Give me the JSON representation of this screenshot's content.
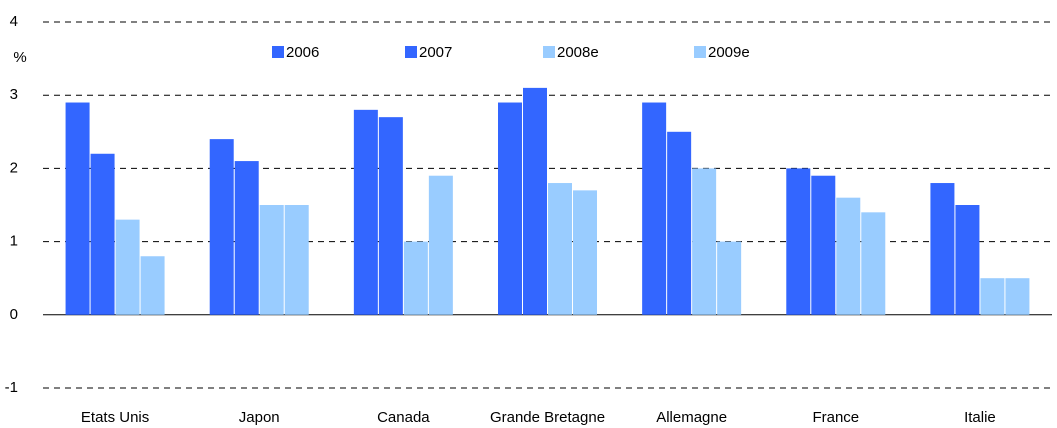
{
  "chart_data": {
    "type": "bar",
    "y_label": "%",
    "categories": [
      "Etats Unis",
      "Japon",
      "Canada",
      "Grande Bretagne",
      "Allemagne",
      "France",
      "Italie"
    ],
    "series": [
      {
        "name": "2006",
        "color": "#3366ff",
        "values": [
          2.9,
          2.4,
          2.8,
          2.9,
          2.9,
          2.0,
          1.8
        ]
      },
      {
        "name": "2007",
        "color": "#3366ff",
        "values": [
          2.2,
          2.1,
          2.7,
          3.1,
          2.5,
          1.9,
          1.5
        ]
      },
      {
        "name": "2008e",
        "color": "#99ccff",
        "values": [
          1.3,
          1.5,
          1.0,
          1.8,
          2.0,
          1.6,
          0.5
        ]
      },
      {
        "name": "2009e",
        "color": "#99ccff",
        "values": [
          0.8,
          1.5,
          1.9,
          1.7,
          1.0,
          1.4,
          0.5
        ]
      }
    ],
    "ylim": [
      -1,
      4
    ],
    "yticks": [
      -1,
      0,
      1,
      2,
      3,
      4
    ],
    "grid": true,
    "legend": "top"
  }
}
